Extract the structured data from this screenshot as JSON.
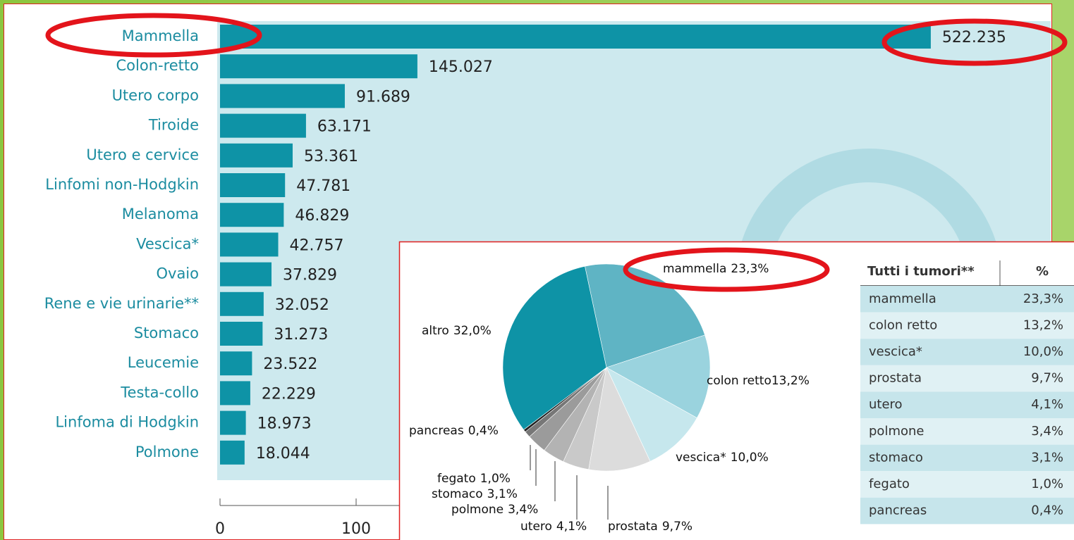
{
  "chart_data": [
    {
      "type": "barh",
      "categories": [
        "Mammella",
        "Colon-retto",
        "Utero corpo",
        "Tiroide",
        "Utero e cervice",
        "Linfomi non-Hodgkin",
        "Melanoma",
        "Vescica*",
        "Ovaio",
        "Rene e vie urinarie**",
        "Stomaco",
        "Leucemie",
        "Testa-collo",
        "Linfoma di Hodgkin",
        "Polmone"
      ],
      "values": [
        522.235,
        145.027,
        91.689,
        63.171,
        53.361,
        47.781,
        46.829,
        42.757,
        37.829,
        32.052,
        31.273,
        23.522,
        22.229,
        18.973,
        18.044
      ],
      "color": "#0e93a6",
      "xlim": [
        0,
        600
      ],
      "xticks": [
        0,
        100
      ]
    },
    {
      "type": "pie",
      "categories": [
        "mammella",
        "colon retto",
        "vescica*",
        "prostata",
        "utero",
        "polmone",
        "stomaco",
        "fegato",
        "pancreas",
        "altro"
      ],
      "values": [
        23.3,
        13.2,
        10.0,
        9.7,
        4.1,
        3.4,
        3.1,
        1.0,
        0.4,
        32.0
      ],
      "value_labels": [
        "23,3%",
        "13,2%",
        "10,0%",
        "9,7%",
        "4,1%",
        "3,4%",
        "3,1%",
        "1,0%",
        "0,4%",
        "32,0%"
      ],
      "colors": [
        "#5fb4c4",
        "#9ad3de",
        "#c6e7ed",
        "#dcdcdc",
        "#c9c9c9",
        "#b3b3b3",
        "#9b9b9b",
        "#777777",
        "#222222",
        "#0e93a6"
      ]
    }
  ],
  "table": {
    "header": [
      "Tutti i tumori**",
      "%"
    ],
    "rows": [
      [
        "mammella",
        "23,3%"
      ],
      [
        "colon retto",
        "13,2%"
      ],
      [
        "vescica*",
        "10,0%"
      ],
      [
        "prostata",
        "9,7%"
      ],
      [
        "utero",
        "4,1%"
      ],
      [
        "polmone",
        "3,4%"
      ],
      [
        "stomaco",
        "3,1%"
      ],
      [
        "fegato",
        "1,0%"
      ],
      [
        "pancreas",
        "0,4%"
      ]
    ]
  }
}
